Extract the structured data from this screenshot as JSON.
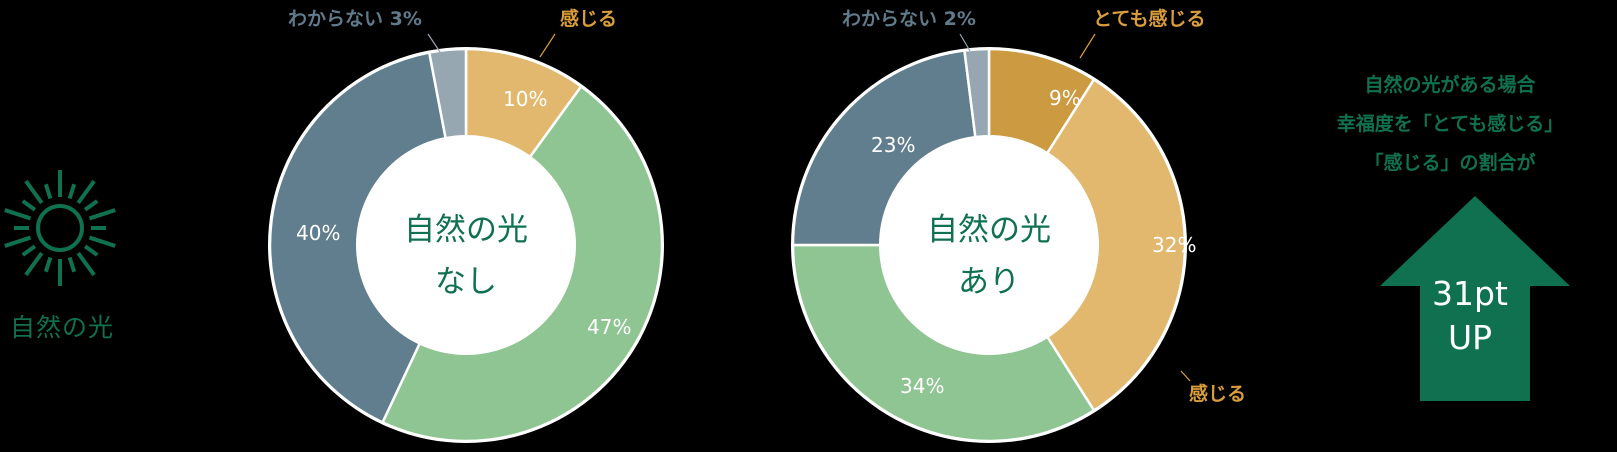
{
  "sun_icon": {
    "name": "sun-icon",
    "label": "自然の光",
    "color": "#0f7150"
  },
  "charts_meta": {
    "center_fill": "#ffffff",
    "separator": "#ffffff",
    "value_label_color": "#ffffff",
    "center_text_color": "#0f7150"
  },
  "chart_data": [
    {
      "type": "pie",
      "subtype": "donut",
      "title": "自然の光なし",
      "center_lines": [
        "自然の光",
        "なし"
      ],
      "start": "top, clockwise",
      "slices": [
        {
          "label": "感じる",
          "value": 10,
          "color": "#e2b86f",
          "legend": "感じる",
          "legend_color": "#d99d3b"
        },
        {
          "label": "",
          "value": 47,
          "color": "#8fc592"
        },
        {
          "label": "",
          "value": 40,
          "color": "#617e8e"
        },
        {
          "label": "わからない",
          "value": 3,
          "color": "#96a7b1",
          "legend": "わからない 3%",
          "legend_color": "#5f7b8c",
          "hide_value": true
        }
      ]
    },
    {
      "type": "pie",
      "subtype": "donut",
      "title": "自然の光あり",
      "center_lines": [
        "自然の光",
        "あり"
      ],
      "start": "top, clockwise",
      "slices": [
        {
          "label": "とても感じる",
          "value": 9,
          "color": "#cc9a40",
          "legend": "とても感じる",
          "legend_color": "#d99d3b"
        },
        {
          "label": "感じる",
          "value": 32,
          "color": "#e2b86f",
          "legend": "感じる",
          "legend_color": "#d99d3b"
        },
        {
          "label": "",
          "value": 34,
          "color": "#8fc592"
        },
        {
          "label": "",
          "value": 23,
          "color": "#617e8e"
        },
        {
          "label": "わからない",
          "value": 2,
          "color": "#96a7b1",
          "legend": "わからない 2%",
          "legend_color": "#5f7b8c",
          "hide_value": true
        }
      ]
    }
  ],
  "summary": {
    "lines": [
      "自然の光がある場合",
      "幸福度を「とても感じる」",
      "「感じる」の割合が"
    ],
    "arrow_line1": "31pt",
    "arrow_line2": "UP",
    "arrow_color": "#0f7150"
  },
  "labels": {
    "c1_top_right": "感じる",
    "c1_top_left": "わからない 3%",
    "c2_top_right": "とても感じる",
    "c2_top_left": "わからない 2%",
    "c2_bottom_right": "感じる",
    "c1_v0": "10%",
    "c1_v1": "47%",
    "c1_v2": "40%",
    "c2_v0": "9%",
    "c2_v1": "32%",
    "c2_v2": "34%",
    "c2_v3": "23%",
    "c1_center1": "自然の光",
    "c1_center2": "なし",
    "c2_center1": "自然の光",
    "c2_center2": "あり"
  }
}
